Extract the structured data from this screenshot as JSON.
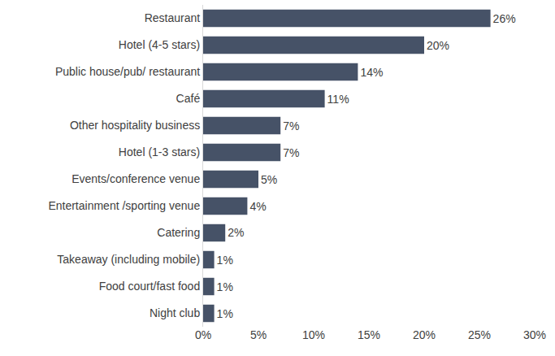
{
  "chart_data": {
    "type": "bar",
    "orientation": "horizontal",
    "categories": [
      "Restaurant",
      "Hotel (4-5 stars)",
      "Public house/pub/ restaurant",
      "Café",
      "Other hospitality business",
      "Hotel (1-3 stars)",
      "Events/conference venue",
      "Entertainment /sporting venue",
      "Catering",
      "Takeaway (including mobile)",
      "Food court/fast food",
      "Night club"
    ],
    "values": [
      26,
      20,
      14,
      11,
      7,
      7,
      5,
      4,
      2,
      1,
      1,
      1
    ],
    "value_labels": [
      "26%",
      "20%",
      "14%",
      "11%",
      "7%",
      "7%",
      "5%",
      "4%",
      "2%",
      "1%",
      "1%",
      "1%"
    ],
    "data_labels": true,
    "color": "#465267",
    "xlim": [
      0,
      30
    ],
    "xticks": [
      {
        "value": 0,
        "label": "0%"
      },
      {
        "value": 5,
        "label": "5%"
      },
      {
        "value": 10,
        "label": "10%"
      },
      {
        "value": 15,
        "label": "15%"
      },
      {
        "value": 20,
        "label": "20%"
      },
      {
        "value": 25,
        "label": "25%"
      },
      {
        "value": 30,
        "label": "30%"
      }
    ],
    "grid": false
  }
}
